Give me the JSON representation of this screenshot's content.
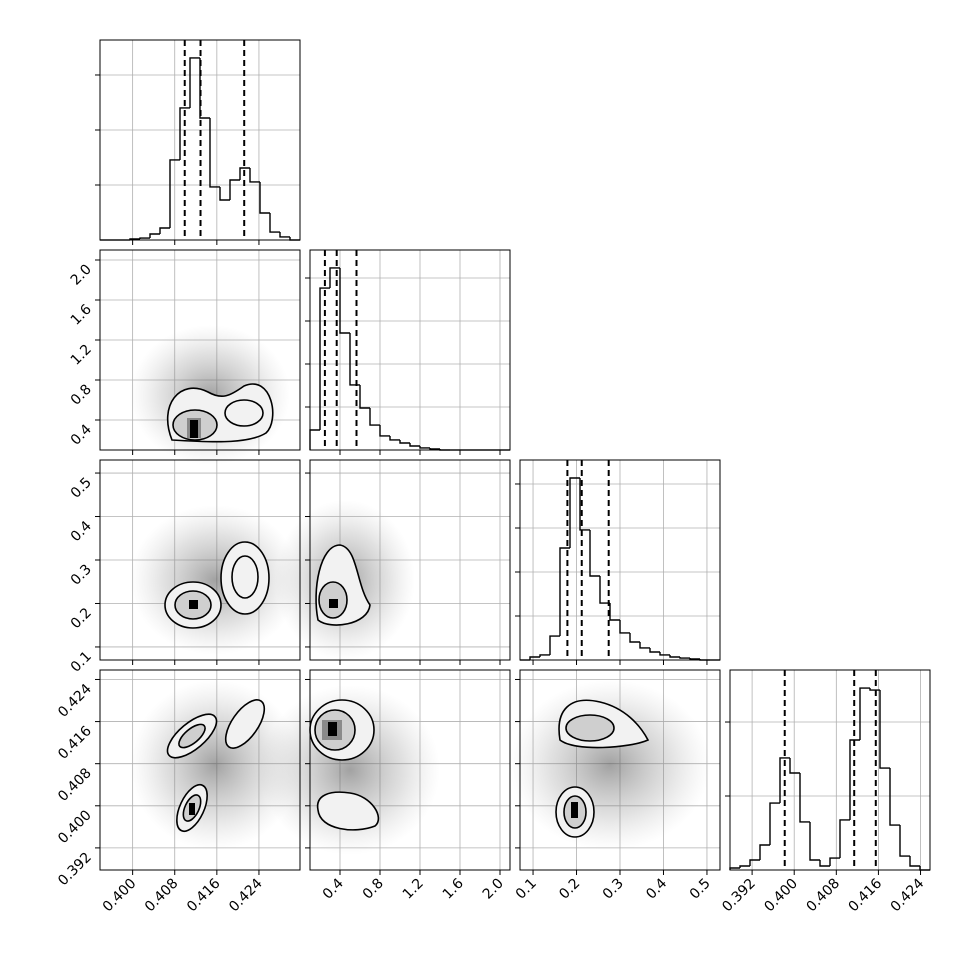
{
  "chart_data": {
    "type": "corner",
    "grid": true,
    "color": "#000000",
    "params": [
      {
        "xlim": [
          0.3938,
          0.4318
        ],
        "xticks": [
          {
            "value": 0.4,
            "label": "0.400"
          },
          0.408,
          0.416,
          0.424
        ],
        "bins": [
          0.3938,
          0.3957,
          0.3976,
          0.3995,
          0.4014,
          0.4033,
          0.4052,
          0.4071,
          0.409,
          0.4109,
          0.4128,
          0.4147,
          0.4166,
          0.4185,
          0.4204,
          0.4223,
          0.4242,
          0.4261,
          0.428,
          0.4299,
          0.4318
        ],
        "counts": [
          0,
          0,
          0,
          18,
          36,
          109,
          218,
          1455,
          2400,
          3309,
          2218,
          964,
          727,
          1091,
          1309,
          1055,
          491,
          145,
          55,
          0
        ],
        "ylim": [
          0,
          3636
        ],
        "yticks": [
          1000,
          2000,
          3000
        ],
        "quantiles": [
          0.4099,
          0.4129,
          0.4212
        ]
      },
      {
        "xlim": [
          0.1,
          2.1
        ],
        "xticks": [
          0.4,
          0.8,
          1.2,
          1.6,
          {
            "value": 2,
            "label": "2.0"
          }
        ],
        "bins": [
          0.1,
          0.2,
          0.3,
          0.4,
          0.5,
          0.6,
          0.7,
          0.8,
          0.9,
          1.0,
          1.1,
          1.2,
          1.3,
          1.4,
          1.5,
          1.6,
          1.7,
          1.8,
          1.9,
          2.0,
          2.1
        ],
        "counts": [
          465,
          3767,
          4233,
          2721,
          1512,
          977,
          581,
          326,
          233,
          163,
          93,
          47,
          23,
          0,
          0,
          0,
          0,
          0,
          0,
          0
        ],
        "ylim": [
          0,
          4651
        ],
        "yticks": [
          1000,
          2000,
          3000,
          4000
        ],
        "quantiles": [
          0.249,
          0.367,
          0.565
        ]
      },
      {
        "xlim": [
          0.07,
          0.53
        ],
        "xticks": [
          0.1,
          0.2,
          0.3,
          0.4,
          0.5
        ],
        "bins": [
          0.07,
          0.093,
          0.116,
          0.139,
          0.162,
          0.185,
          0.208,
          0.231,
          0.254,
          0.277,
          0.3,
          0.323,
          0.346,
          0.369,
          0.392,
          0.415,
          0.438,
          0.461,
          0.484,
          0.507,
          0.53
        ],
        "counts": [
          0,
          68,
          114,
          545,
          2545,
          4136,
          2955,
          1909,
          1295,
          909,
          614,
          409,
          273,
          182,
          114,
          68,
          45,
          23,
          0,
          0
        ],
        "ylim": [
          0,
          4545
        ],
        "yticks": [
          1000,
          2000,
          3000,
          4000
        ],
        "quantiles": [
          0.179,
          0.212,
          0.274
        ]
      },
      {
        "xlim": [
          0.3878,
          0.4258
        ],
        "xticks": [
          0.392,
          {
            "value": 0.4,
            "label": "0.400"
          },
          0.408,
          0.416,
          0.424
        ],
        "bins": [
          0.3878,
          0.3897,
          0.3916,
          0.3935,
          0.3954,
          0.3973,
          0.3992,
          0.4011,
          0.403,
          0.4049,
          0.4068,
          0.4087,
          0.4106,
          0.4125,
          0.4144,
          0.4163,
          0.4182,
          0.4201,
          0.422,
          0.4239,
          0.4258
        ],
        "counts": [
          27,
          54,
          135,
          338,
          905,
          1514,
          1311,
          649,
          135,
          54,
          162,
          676,
          1757,
          2459,
          2432,
          1378,
          608,
          189,
          54,
          0
        ],
        "ylim": [
          0,
          2703
        ],
        "yticks": [
          1000,
          2000
        ],
        "quantiles": [
          0.3982,
          0.4114,
          0.4155
        ]
      }
    ]
  }
}
